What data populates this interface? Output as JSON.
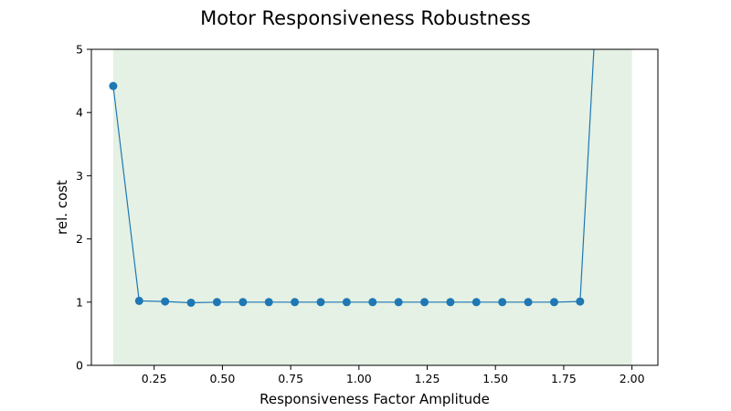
{
  "chart_data": {
    "type": "line",
    "title": "Motor Responsiveness Robustness",
    "xlabel": "Responsiveness Factor Amplitude",
    "ylabel": "rel. cost",
    "xlim": [
      0.02,
      2.095
    ],
    "ylim": [
      0,
      5
    ],
    "x_ticks": [
      0.25,
      0.5,
      0.75,
      1.0,
      1.25,
      1.5,
      1.75,
      2.0
    ],
    "x_tick_labels": [
      "0.25",
      "0.50",
      "0.75",
      "1.00",
      "1.25",
      "1.50",
      "1.75",
      "2.00"
    ],
    "y_ticks": [
      0,
      1,
      2,
      3,
      4,
      5
    ],
    "y_tick_labels": [
      "0",
      "1",
      "2",
      "3",
      "4",
      "5"
    ],
    "shaded_region": {
      "x": [
        0.1,
        2.0
      ],
      "color": "#e4f1e4"
    },
    "grid": false,
    "series": [
      {
        "color": "#1f77b4",
        "x": [
          0.1,
          0.195,
          0.29,
          0.385,
          0.48,
          0.575,
          0.67,
          0.765,
          0.86,
          0.955,
          1.05,
          1.145,
          1.24,
          1.335,
          1.43,
          1.525,
          1.62,
          1.715,
          1.81,
          1.905
        ],
        "y": [
          4.42,
          1.02,
          1.01,
          0.99,
          1.0,
          1.0,
          1.0,
          1.0,
          1.0,
          1.0,
          1.0,
          1.0,
          1.0,
          1.0,
          1.0,
          1.0,
          1.0,
          1.0,
          1.01,
          8.5
        ],
        "marker_count": 19
      }
    ]
  }
}
